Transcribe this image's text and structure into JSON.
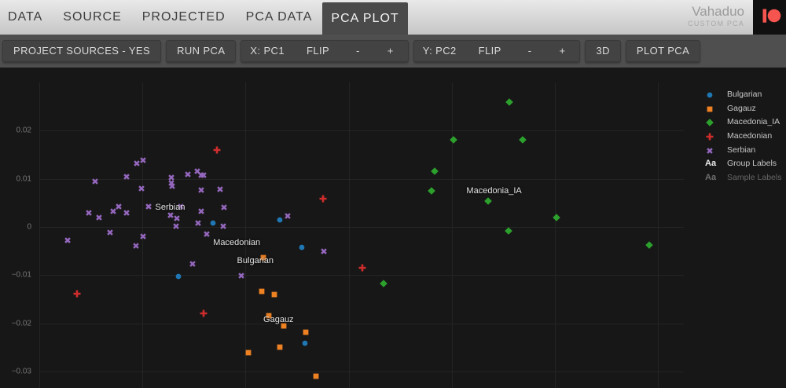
{
  "header": {
    "tabs": [
      {
        "label": "DATA",
        "active": false
      },
      {
        "label": "SOURCE",
        "active": false
      },
      {
        "label": "PROJECTED",
        "active": false
      },
      {
        "label": "PCA DATA",
        "active": false
      },
      {
        "label": "PCA PLOT",
        "active": true
      }
    ],
    "brand": {
      "title": "Vahaduo",
      "subtitle": "CUSTOM PCA"
    }
  },
  "toolbar": {
    "project_sources": "PROJECT SOURCES - YES",
    "run_pca": "RUN PCA",
    "x_axis": {
      "label": "X: PC1",
      "flip": "FLIP",
      "minus": "-",
      "plus": "+"
    },
    "y_axis": {
      "label": "Y: PC2",
      "flip": "FLIP",
      "minus": "-",
      "plus": "+"
    },
    "three_d": "3D",
    "plot_pca": "PLOT PCA"
  },
  "legend": {
    "items": [
      {
        "label": "Bulgarian",
        "symbol": "circle",
        "color": "#1f77b4"
      },
      {
        "label": "Gagauz",
        "symbol": "square",
        "color": "#ee8122"
      },
      {
        "label": "Macedonia_IA",
        "symbol": "diamond",
        "color": "#2ca02c"
      },
      {
        "label": "Macedonian",
        "symbol": "plus",
        "color": "#cf2d2d"
      },
      {
        "label": "Serbian",
        "symbol": "x",
        "color": "#9467bd"
      }
    ],
    "toggles": [
      {
        "glyph": "Aa",
        "label": "Group Labels",
        "enabled": true
      },
      {
        "glyph": "Aa",
        "label": "Sample Labels",
        "enabled": false
      }
    ]
  },
  "chart_data": {
    "type": "scatter",
    "title": "",
    "xlabel": "PC1",
    "ylabel": "PC2",
    "xlim": [
      -0.0676,
      0.0848
    ],
    "ylim": [
      -0.0334,
      0.0331
    ],
    "xticks": [
      -0.06,
      -0.04,
      -0.02,
      0,
      0.02,
      0.04,
      0.06
    ],
    "yticks": [
      {
        "value": 0.02,
        "label": "0.02"
      },
      {
        "value": 0.01,
        "label": "0.01"
      },
      {
        "value": 0,
        "label": "0"
      },
      {
        "value": -0.01,
        "label": "−0.01"
      },
      {
        "value": -0.02,
        "label": "−0.02"
      },
      {
        "value": -0.03,
        "label": "−0.03"
      }
    ],
    "grid": true,
    "legend_position": "right",
    "series": [
      {
        "name": "Bulgarian",
        "symbol": "circle",
        "color": "#1f77b4",
        "points": [
          [
            -0.0263,
            0.001
          ],
          [
            -0.0134,
            0.0017
          ],
          [
            -0.0091,
            -0.004
          ],
          [
            -0.033,
            -0.0101
          ],
          [
            -0.0085,
            -0.024
          ]
        ]
      },
      {
        "name": "Gagauz",
        "symbol": "square",
        "color": "#ee8122",
        "points": [
          [
            -0.0165,
            -0.0061
          ],
          [
            -0.0168,
            -0.0132
          ],
          [
            -0.0144,
            -0.0138
          ],
          [
            -0.0155,
            -0.0182
          ],
          [
            -0.0126,
            -0.0204
          ],
          [
            -0.0083,
            -0.0216
          ],
          [
            -0.0133,
            -0.0247
          ],
          [
            -0.0195,
            -0.0259
          ],
          [
            -0.0063,
            -0.0308
          ]
        ]
      },
      {
        "name": "Macedonia_IA",
        "symbol": "diamond",
        "color": "#2ca02c",
        "points": [
          [
            0.0311,
            0.0261
          ],
          [
            0.0204,
            0.0182
          ],
          [
            0.0338,
            0.0183
          ],
          [
            0.0167,
            0.0117
          ],
          [
            0.016,
            0.0077
          ],
          [
            0.027,
            0.0055
          ],
          [
            0.031,
            -0.0006
          ],
          [
            0.0403,
            0.0022
          ],
          [
            0.0582,
            -0.0035
          ],
          [
            0.0068,
            -0.0116
          ]
        ]
      },
      {
        "name": "Macedonian",
        "symbol": "plus",
        "color": "#cf2d2d",
        "points": [
          [
            -0.0256,
            0.0162
          ],
          [
            -0.005,
            0.0061
          ],
          [
            0.0027,
            -0.0083
          ],
          [
            -0.0526,
            -0.0136
          ],
          [
            -0.0282,
            -0.0177
          ]
        ]
      },
      {
        "name": "Serbian",
        "symbol": "x",
        "color": "#9467bd",
        "points": [
          [
            -0.0411,
            0.0134
          ],
          [
            -0.0399,
            0.0141
          ],
          [
            -0.0492,
            0.0096
          ],
          [
            -0.0431,
            0.0106
          ],
          [
            -0.0402,
            0.0081
          ],
          [
            -0.0344,
            0.0105
          ],
          [
            -0.0344,
            0.0093
          ],
          [
            -0.0342,
            0.0086
          ],
          [
            -0.0312,
            0.0111
          ],
          [
            -0.0293,
            0.0118
          ],
          [
            -0.0286,
            0.0109
          ],
          [
            -0.0281,
            0.0109
          ],
          [
            -0.0286,
            0.0079
          ],
          [
            -0.0249,
            0.008
          ],
          [
            -0.0388,
            0.0045
          ],
          [
            -0.0326,
            0.0045
          ],
          [
            -0.0504,
            0.0031
          ],
          [
            -0.0484,
            0.0022
          ],
          [
            -0.0457,
            0.0034
          ],
          [
            -0.0446,
            0.0045
          ],
          [
            -0.043,
            0.0031
          ],
          [
            -0.0345,
            0.0027
          ],
          [
            -0.0333,
            0.002
          ],
          [
            -0.0286,
            0.0035
          ],
          [
            -0.0242,
            0.0043
          ],
          [
            -0.0292,
            0.001
          ],
          [
            -0.0244,
            0.0003
          ],
          [
            -0.0335,
            0.0003
          ],
          [
            -0.0463,
            -0.001
          ],
          [
            -0.0398,
            -0.0017
          ],
          [
            -0.0412,
            -0.0037
          ],
          [
            -0.0275,
            -0.0013
          ],
          [
            -0.0545,
            -0.0026
          ],
          [
            -0.0302,
            -0.0075
          ],
          [
            -0.0208,
            -0.01
          ],
          [
            -0.0118,
            0.0024
          ],
          [
            -0.0048,
            -0.0048
          ]
        ]
      }
    ],
    "group_labels": [
      {
        "text": "Serbian",
        "x": -0.0346,
        "y": 0.0041
      },
      {
        "text": "Macedonian",
        "x": -0.0217,
        "y": -0.0033
      },
      {
        "text": "Bulgarian",
        "x": -0.0181,
        "y": -0.007
      },
      {
        "text": "Gagauz",
        "x": -0.0136,
        "y": -0.0192
      },
      {
        "text": "Macedonia_IA",
        "x": 0.0282,
        "y": 0.0076
      }
    ]
  },
  "colors": {
    "plot_bg": "#171717",
    "grid": "#242424",
    "tick_text": "#757575",
    "group_label_text": "#e2e2e2",
    "patreon": "#f5544f"
  }
}
